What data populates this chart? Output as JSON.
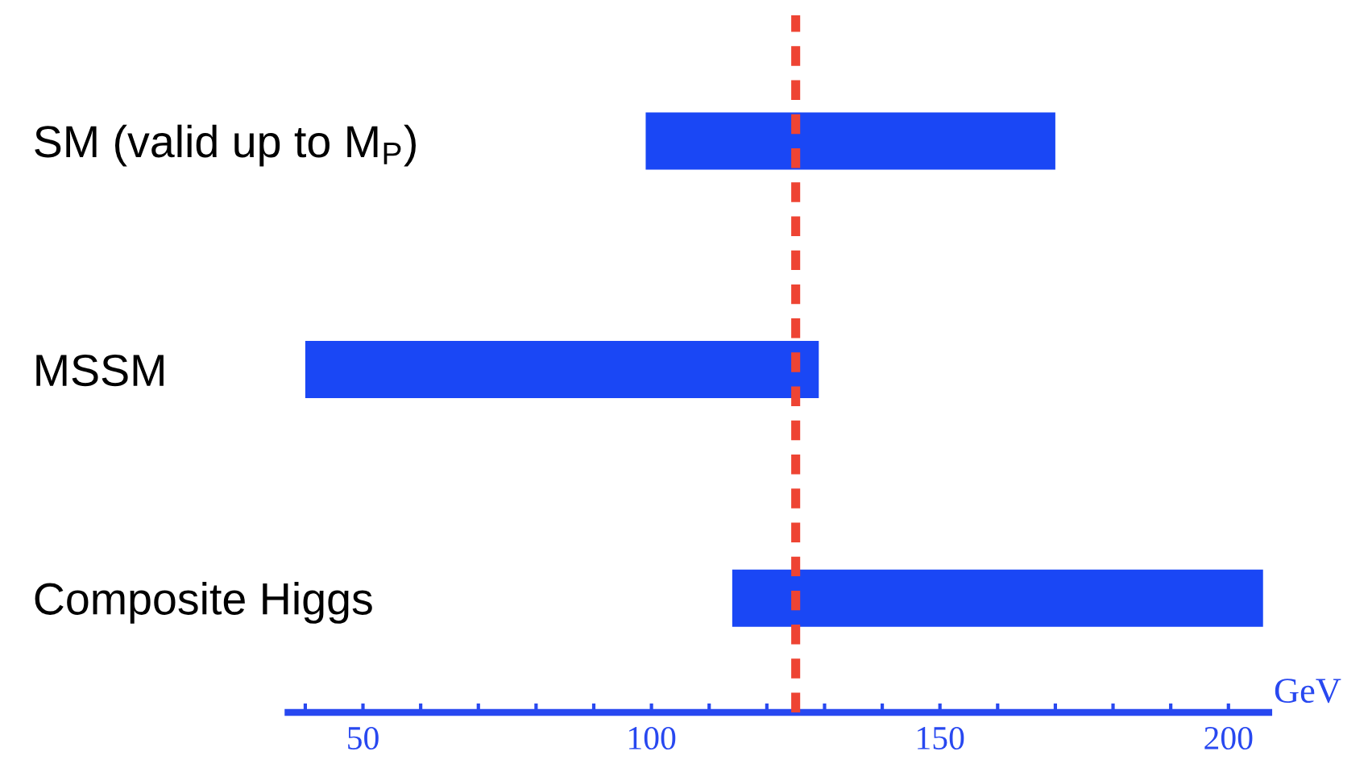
{
  "chart_data": {
    "type": "bar",
    "orientation": "horizontal",
    "xlabel": "GeV",
    "categories": [
      "SM (valid up to M$_{P}$)",
      "MSSM",
      "Composite Higgs"
    ],
    "base": [
      99,
      40,
      114
    ],
    "values": [
      71,
      89,
      92
    ],
    "color": "#1a47f5",
    "xlim": [
      37,
      207
    ],
    "xticks": [
      {
        "value": 40,
        "label": null
      },
      50,
      {
        "value": 60,
        "label": null
      },
      {
        "value": 70,
        "label": null
      },
      {
        "value": 80,
        "label": null
      },
      {
        "value": 90,
        "label": null
      },
      100,
      {
        "value": 110,
        "label": null
      },
      {
        "value": 120,
        "label": null
      },
      {
        "value": 130,
        "label": null
      },
      {
        "value": 140,
        "label": null
      },
      150,
      {
        "value": 160,
        "label": null
      },
      {
        "value": 170,
        "label": null
      },
      {
        "value": 180,
        "label": null
      },
      {
        "value": 190,
        "label": null
      },
      200
    ],
    "ref_lines": [
      {
        "axis": "x",
        "value": 125,
        "color": "#ee4433",
        "line_style": "dashed"
      }
    ],
    "grid": false,
    "legend": false
  }
}
